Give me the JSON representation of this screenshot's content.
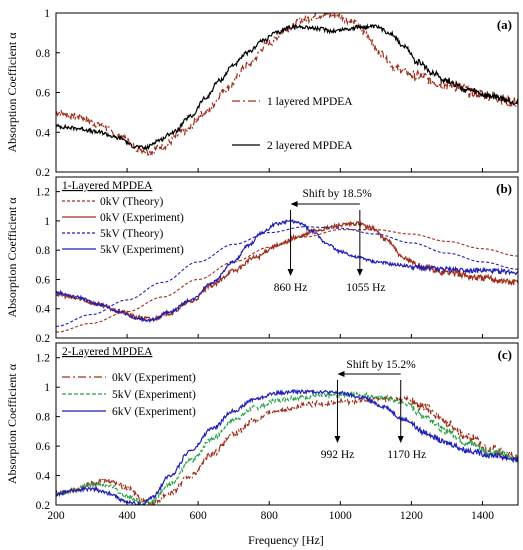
{
  "xlabel": "Frequency [Hz]",
  "chart_data": [
    {
      "type": "line",
      "panel_label": "(a)",
      "ylabel": "Absorption Coefficient α",
      "xlim": [
        200,
        1500
      ],
      "ylim": [
        0.2,
        1.0
      ],
      "yticks": [
        "0.2",
        "0.4",
        "0.6",
        "0.8",
        "1"
      ],
      "xticks": [],
      "series": [
        {
          "name": "1 layered MPDEA",
          "color": "#a0301e",
          "dash": "8,3,2,3",
          "noise": 0.018,
          "x": [
            200,
            260,
            320,
            380,
            430,
            460,
            500,
            560,
            620,
            680,
            740,
            800,
            850,
            900,
            950,
            990,
            1030,
            1070,
            1110,
            1160,
            1220,
            1300,
            1400,
            1500
          ],
          "y": [
            0.5,
            0.48,
            0.44,
            0.38,
            0.32,
            0.3,
            0.33,
            0.4,
            0.5,
            0.62,
            0.74,
            0.85,
            0.92,
            0.97,
            0.99,
            0.99,
            0.96,
            0.9,
            0.8,
            0.72,
            0.68,
            0.64,
            0.59,
            0.55
          ]
        },
        {
          "name": "2 layered MPDEA",
          "color": "#000000",
          "dash": "",
          "noise": 0.01,
          "x": [
            200,
            260,
            320,
            380,
            420,
            450,
            490,
            530,
            580,
            620,
            660,
            700,
            740,
            780,
            820,
            860,
            900,
            940,
            980,
            1020,
            1060,
            1100,
            1140,
            1180,
            1220,
            1260,
            1300,
            1360,
            1420,
            1500
          ],
          "y": [
            0.43,
            0.42,
            0.4,
            0.37,
            0.33,
            0.32,
            0.36,
            0.4,
            0.48,
            0.57,
            0.66,
            0.74,
            0.8,
            0.86,
            0.9,
            0.93,
            0.93,
            0.92,
            0.91,
            0.92,
            0.93,
            0.93,
            0.9,
            0.83,
            0.75,
            0.7,
            0.66,
            0.61,
            0.58,
            0.55
          ]
        }
      ]
    },
    {
      "type": "line",
      "panel_label": "(b)",
      "ylabel": "Absorption Coefficient α",
      "xlim": [
        200,
        1500
      ],
      "ylim": [
        0.2,
        1.3
      ],
      "yticks": [
        "0.2",
        "0.4",
        "0.6",
        "0.8",
        "1",
        "1.2"
      ],
      "xticks": [],
      "legend_title": "1-Layered MPDEA",
      "annotations": {
        "shift": "Shift by 18.5%",
        "peak1": "860 Hz",
        "peak2": "1055 Hz"
      },
      "series": [
        {
          "name": "0kV (Theory)",
          "color": "#a0301e",
          "dash": "3,2",
          "noise": 0,
          "x": [
            200,
            300,
            400,
            500,
            600,
            700,
            800,
            900,
            1000,
            1100,
            1200,
            1300,
            1400,
            1500
          ],
          "y": [
            0.24,
            0.3,
            0.38,
            0.48,
            0.6,
            0.72,
            0.82,
            0.89,
            0.94,
            0.94,
            0.91,
            0.86,
            0.81,
            0.76
          ]
        },
        {
          "name": "0kV (Experiment)",
          "color": "#a0301e",
          "dash": "",
          "noise": 0.015,
          "x": [
            200,
            260,
            320,
            380,
            430,
            470,
            520,
            580,
            640,
            700,
            760,
            820,
            880,
            940,
            1000,
            1050,
            1090,
            1130,
            1180,
            1240,
            1300,
            1400,
            1500
          ],
          "y": [
            0.5,
            0.47,
            0.43,
            0.38,
            0.34,
            0.33,
            0.37,
            0.45,
            0.56,
            0.66,
            0.75,
            0.83,
            0.89,
            0.94,
            0.97,
            0.98,
            0.95,
            0.87,
            0.74,
            0.68,
            0.65,
            0.61,
            0.58
          ]
        },
        {
          "name": "5kV (Theory)",
          "color": "#1f1fb8",
          "dash": "3,2",
          "noise": 0,
          "x": [
            200,
            300,
            400,
            500,
            600,
            700,
            800,
            900,
            1000,
            1100,
            1200,
            1300,
            1400,
            1500
          ],
          "y": [
            0.28,
            0.36,
            0.46,
            0.58,
            0.72,
            0.84,
            0.92,
            0.96,
            0.95,
            0.91,
            0.85,
            0.78,
            0.72,
            0.67
          ]
        },
        {
          "name": "5kV (Experiment)",
          "color": "#1f1fb8",
          "dash": "",
          "noise": 0.01,
          "x": [
            200,
            260,
            320,
            380,
            430,
            470,
            520,
            580,
            640,
            700,
            740,
            780,
            820,
            860,
            890,
            920,
            960,
            1000,
            1050,
            1100,
            1160,
            1220,
            1300,
            1400,
            1500
          ],
          "y": [
            0.51,
            0.48,
            0.43,
            0.38,
            0.33,
            0.32,
            0.38,
            0.46,
            0.58,
            0.72,
            0.83,
            0.92,
            0.98,
            1.0,
            0.98,
            0.93,
            0.85,
            0.79,
            0.75,
            0.72,
            0.7,
            0.68,
            0.67,
            0.66,
            0.65
          ]
        }
      ]
    },
    {
      "type": "line",
      "panel_label": "(c)",
      "ylabel": "Absorption Coefficient α",
      "xlim": [
        200,
        1500
      ],
      "ylim": [
        0.2,
        1.3
      ],
      "yticks": [
        "0.2",
        "0.4",
        "0.6",
        "0.8",
        "1",
        "1.2"
      ],
      "xticks": [
        "200",
        "400",
        "600",
        "800",
        "1000",
        "1200",
        "1400"
      ],
      "legend_title": "2-Layered MPDEA",
      "annotations": {
        "shift": "Shift by 15.2%",
        "peak1": "992 Hz",
        "peak2": "1170 Hz"
      },
      "series": [
        {
          "name": "0kV (Experiment)",
          "color": "#a0301e",
          "dash": "8,3,2,3",
          "noise": 0.02,
          "x": [
            200,
            250,
            300,
            350,
            400,
            440,
            470,
            520,
            580,
            640,
            700,
            760,
            820,
            880,
            940,
            1000,
            1060,
            1120,
            1180,
            1240,
            1300,
            1360,
            1420,
            1500
          ],
          "y": [
            0.28,
            0.3,
            0.34,
            0.37,
            0.32,
            0.24,
            0.21,
            0.28,
            0.4,
            0.55,
            0.68,
            0.78,
            0.84,
            0.87,
            0.89,
            0.9,
            0.91,
            0.92,
            0.92,
            0.86,
            0.76,
            0.66,
            0.58,
            0.52
          ]
        },
        {
          "name": "5kV (Experiment)",
          "color": "#2aa04a",
          "dash": "4,2",
          "noise": 0.015,
          "x": [
            200,
            250,
            300,
            350,
            400,
            440,
            470,
            520,
            580,
            640,
            700,
            760,
            820,
            880,
            940,
            1000,
            1060,
            1120,
            1180,
            1240,
            1300,
            1360,
            1420,
            1500
          ],
          "y": [
            0.27,
            0.3,
            0.34,
            0.33,
            0.26,
            0.21,
            0.22,
            0.34,
            0.5,
            0.65,
            0.78,
            0.86,
            0.91,
            0.93,
            0.94,
            0.95,
            0.95,
            0.93,
            0.89,
            0.8,
            0.7,
            0.62,
            0.56,
            0.52
          ]
        },
        {
          "name": "6kV (Experiment)",
          "color": "#1f1fb8",
          "dash": "",
          "noise": 0.012,
          "x": [
            200,
            250,
            300,
            350,
            400,
            440,
            470,
            520,
            580,
            640,
            700,
            760,
            820,
            880,
            940,
            1000,
            1060,
            1120,
            1180,
            1240,
            1300,
            1360,
            1420,
            1500
          ],
          "y": [
            0.27,
            0.3,
            0.31,
            0.28,
            0.22,
            0.2,
            0.25,
            0.4,
            0.57,
            0.72,
            0.84,
            0.92,
            0.96,
            0.97,
            0.97,
            0.96,
            0.93,
            0.87,
            0.78,
            0.69,
            0.62,
            0.57,
            0.54,
            0.51
          ]
        }
      ]
    }
  ]
}
